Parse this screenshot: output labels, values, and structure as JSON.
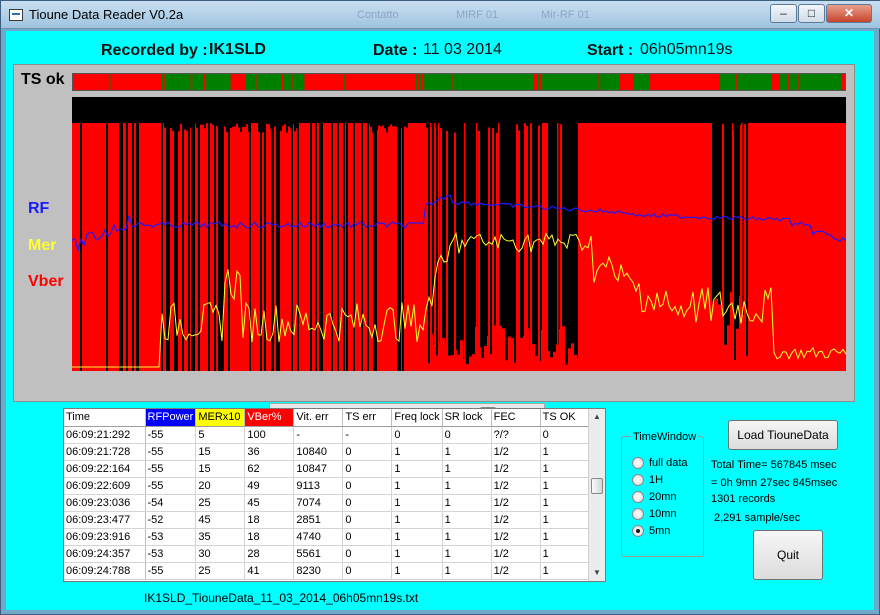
{
  "window": {
    "title": "Tioune Data Reader V0.2a",
    "ghost_tabs": [
      "Contatto",
      "MIRF 01",
      "Mir-RF 01"
    ],
    "buttons": {
      "minimize": "–",
      "maximize": "□",
      "close": "✕"
    }
  },
  "header": {
    "recorded_by_label": "Recorded by :",
    "recorded_by_value": "IK1SLD",
    "date_label": "Date :",
    "date_value": "11 03 2014",
    "start_label": "Start :",
    "start_value": "06h05mn19s"
  },
  "plot": {
    "ts_label": "TS ok",
    "rf_label": "RF",
    "mer_label": "Mer",
    "vber_label": "Vber",
    "colors": {
      "rf": "#1a1aff",
      "mer": "#ffff33",
      "vber": "#ff0000",
      "background": "#000000",
      "ts_ok": "#008000",
      "ts_bad": "#ff0000",
      "panel": "#c0c0c0"
    },
    "scroll_left_icon": "arrow-left-icon",
    "scroll_right_icon": "arrow-right-icon"
  },
  "table": {
    "columns": [
      "Time",
      "RFPower",
      "MERx10",
      "VBer%",
      "Vit. err",
      "TS err",
      "Freq lock",
      "SR lock",
      "FEC",
      "TS OK"
    ],
    "header_colors": [
      "#ffffff",
      "#0000ff",
      "#ffff00",
      "#ff0000",
      "#ffffff",
      "#ffffff",
      "#ffffff",
      "#ffffff",
      "#ffffff",
      "#ffffff"
    ],
    "header_text_colors": [
      "#000000",
      "#ffffff",
      "#000000",
      "#ffffff",
      "#000000",
      "#000000",
      "#000000",
      "#000000",
      "#000000",
      "#000000"
    ],
    "rows": [
      [
        "06:09:21:292",
        "-55",
        "5",
        "100",
        "-",
        "-",
        "0",
        "0",
        "?/?",
        "0"
      ],
      [
        "06:09:21:728",
        "-55",
        "15",
        "36",
        "10840",
        "0",
        "1",
        "1",
        "1/2",
        "1"
      ],
      [
        "06:09:22:164",
        "-55",
        "15",
        "62",
        "10847",
        "0",
        "1",
        "1",
        "1/2",
        "1"
      ],
      [
        "06:09:22:609",
        "-55",
        "20",
        "49",
        "9113",
        "0",
        "1",
        "1",
        "1/2",
        "1"
      ],
      [
        "06:09:23:036",
        "-54",
        "25",
        "45",
        "7074",
        "0",
        "1",
        "1",
        "1/2",
        "1"
      ],
      [
        "06:09:23:477",
        "-52",
        "45",
        "18",
        "2851",
        "0",
        "1",
        "1",
        "1/2",
        "1"
      ],
      [
        "06:09:23:916",
        "-53",
        "35",
        "18",
        "4740",
        "0",
        "1",
        "1",
        "1/2",
        "1"
      ],
      [
        "06:09:24:357",
        "-53",
        "30",
        "28",
        "5561",
        "0",
        "1",
        "1",
        "1/2",
        "1"
      ],
      [
        "06:09:24:788",
        "-55",
        "25",
        "41",
        "8230",
        "0",
        "1",
        "1",
        "1/2",
        "1"
      ]
    ]
  },
  "filename": "IK1SLD_TiouneData_11_03_2014_06h05mn19s.txt",
  "time_window": {
    "legend": "TimeWindow",
    "options": [
      "full data",
      "1H",
      "20mn",
      "10mn",
      "5mn"
    ],
    "selected": "5mn"
  },
  "load_button": "Load TiouneData",
  "info": {
    "total_time": "Total Time= 567845 msec",
    "duration": "= 0h 9mn 27sec 845msec",
    "records": "1301 records",
    "rate": "2,291 sample/sec"
  },
  "quit_button": "Quit"
}
